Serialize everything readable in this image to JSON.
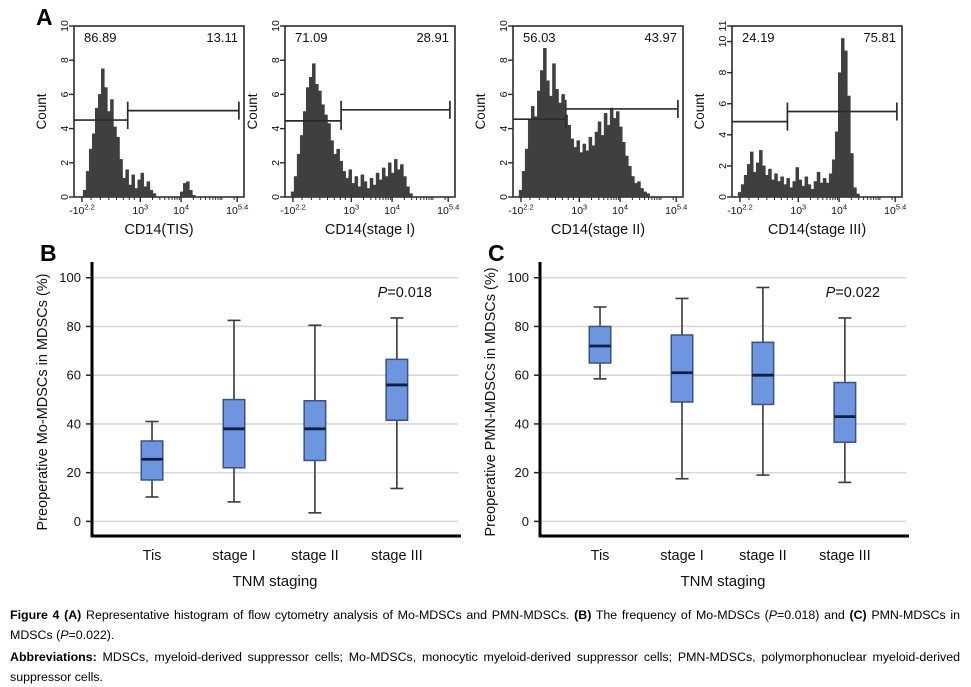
{
  "figure": {
    "panel_a_label": "A",
    "panel_b_label": "B",
    "panel_c_label": "C"
  },
  "colors": {
    "hist_fill": "#3f3f3f",
    "axis": "#2b2b2b",
    "box_fill": "#6e96e0",
    "box_border": "#3c5182",
    "median": "#131f3e",
    "whisker": "#3a3a3a",
    "grid": "#d8d8d8",
    "text": "#111111"
  },
  "hist_minor_ticks": [
    0.1,
    0.155,
    0.205,
    0.25,
    0.29,
    0.325,
    0.355,
    0.462,
    0.505,
    0.534,
    0.558,
    0.577,
    0.593,
    0.607,
    0.62,
    0.702,
    0.745,
    0.774,
    0.798,
    0.817,
    0.833,
    0.847,
    0.86,
    0.87,
    0.942
  ],
  "chart_data": [
    {
      "id": "hist-tis",
      "type": "histogram",
      "ylabel": "Count",
      "xlabel": "CD14(TIS)",
      "ylim": [
        0,
        10
      ],
      "yticks": [
        0,
        2,
        4,
        6,
        8,
        10
      ],
      "xticks": [
        {
          "base": "-10",
          "exp": "2.2",
          "pos": 0.047
        },
        {
          "base": "10",
          "exp": "3",
          "pos": 0.39
        },
        {
          "base": "10",
          "exp": "4",
          "pos": 0.63
        },
        {
          "base": "10",
          "exp": "5.4",
          "pos": 0.96
        }
      ],
      "gate": {
        "boundary": 0.316,
        "left_y": 4.5,
        "right_y": 5.05,
        "left_label": "86.89",
        "right_label": "13.11"
      },
      "counts": [
        0,
        0,
        0,
        0.4,
        1.5,
        2.8,
        3.7,
        5.2,
        6,
        7.5,
        6.4,
        5,
        5.7,
        4.1,
        3.5,
        2.2,
        1.1,
        1.6,
        0.7,
        1.3,
        0.5,
        1,
        1.4,
        0.6,
        0.9,
        0.4,
        0.2,
        0,
        0,
        0,
        0,
        0,
        0,
        0,
        0,
        0.3,
        0.8,
        0.9,
        0.4,
        0.1,
        0,
        0,
        0,
        0,
        0,
        0,
        0,
        0,
        0,
        0,
        0,
        0,
        0,
        0,
        0,
        0
      ]
    },
    {
      "id": "hist-stage1",
      "type": "histogram",
      "ylabel": "Count",
      "xlabel": "CD14(stage I)",
      "ylim": [
        0,
        10
      ],
      "yticks": [
        0,
        2,
        4,
        6,
        8,
        10
      ],
      "xticks": [
        {
          "base": "-10",
          "exp": "2.2",
          "pos": 0.047
        },
        {
          "base": "10",
          "exp": "3",
          "pos": 0.39
        },
        {
          "base": "10",
          "exp": "4",
          "pos": 0.63
        },
        {
          "base": "10",
          "exp": "5.4",
          "pos": 0.96
        }
      ],
      "gate": {
        "boundary": 0.33,
        "left_y": 4.45,
        "right_y": 5.1,
        "left_label": "71.09",
        "right_label": "28.91"
      },
      "counts": [
        0,
        0,
        0.3,
        1.2,
        2.5,
        3.6,
        5,
        6.4,
        7,
        7.8,
        6.6,
        6.2,
        5.4,
        4.8,
        4.3,
        3.3,
        2.5,
        2.8,
        2.1,
        1.5,
        1.1,
        1.6,
        0.8,
        1.2,
        0.6,
        1.3,
        0.9,
        0.5,
        1.1,
        0.7,
        1.4,
        1,
        1.7,
        1.2,
        2,
        1.4,
        2.2,
        1.6,
        1.9,
        1.2,
        0.6,
        0.2,
        0,
        0,
        0,
        0,
        0,
        0,
        0,
        0,
        0,
        0,
        0,
        0,
        0,
        0
      ]
    },
    {
      "id": "hist-stage2",
      "type": "histogram",
      "ylabel": "Count",
      "xlabel": "CD14(stage II)",
      "ylim": [
        0,
        10
      ],
      "yticks": [
        0,
        2,
        4,
        6,
        8,
        10
      ],
      "xticks": [
        {
          "base": "-10",
          "exp": "2.2",
          "pos": 0.047
        },
        {
          "base": "10",
          "exp": "3",
          "pos": 0.39
        },
        {
          "base": "10",
          "exp": "4",
          "pos": 0.63
        },
        {
          "base": "10",
          "exp": "5.4",
          "pos": 0.96
        }
      ],
      "gate": {
        "boundary": 0.31,
        "left_y": 4.55,
        "right_y": 5.15,
        "left_label": "56.03",
        "right_label": "43.97"
      },
      "counts": [
        0,
        0,
        0.4,
        1.5,
        2.8,
        4.5,
        5.3,
        4.7,
        6.2,
        7.4,
        8.7,
        6.8,
        5.9,
        7.8,
        6.3,
        5.5,
        6,
        4.8,
        4.2,
        3.4,
        2.9,
        3.3,
        2.6,
        3.1,
        2.7,
        3.5,
        3,
        3.8,
        4.4,
        3.6,
        4.9,
        4.2,
        5.2,
        4.6,
        5,
        4.1,
        3.2,
        2.4,
        1.8,
        1.2,
        0.8,
        0.9,
        0.5,
        0.3,
        0.2,
        0,
        0,
        0,
        0,
        0,
        0,
        0,
        0,
        0,
        0,
        0
      ]
    },
    {
      "id": "hist-stage3",
      "type": "histogram",
      "ylabel": "Count",
      "xlabel": "CD14(stage III)",
      "ylim": [
        0,
        11
      ],
      "yticks": [
        0,
        2,
        4,
        6,
        8,
        10,
        11
      ],
      "xticks": [
        {
          "base": "-10",
          "exp": "2.2",
          "pos": 0.047
        },
        {
          "base": "10",
          "exp": "3",
          "pos": 0.39
        },
        {
          "base": "10",
          "exp": "4",
          "pos": 0.63
        },
        {
          "base": "10",
          "exp": "5.4",
          "pos": 0.96
        }
      ],
      "gate": {
        "boundary": 0.326,
        "left_y": 4.85,
        "right_y": 5.5,
        "left_label": "24.19",
        "right_label": "75.81"
      },
      "counts": [
        0,
        0,
        0.3,
        0.8,
        1.4,
        2.1,
        2.9,
        1.6,
        2.2,
        3,
        2,
        1.4,
        1.8,
        1.1,
        1.5,
        1,
        1.3,
        0.8,
        1.2,
        0.6,
        1,
        1.9,
        1.1,
        0.7,
        1.3,
        0.8,
        0.5,
        1,
        1.6,
        0.9,
        1.2,
        0.9,
        1.5,
        2.4,
        4.2,
        8,
        10.2,
        9.4,
        6.5,
        2.8,
        0.6,
        0.2,
        0,
        0,
        0,
        0,
        0,
        0,
        0,
        0,
        0,
        0,
        0,
        0,
        0,
        0
      ]
    },
    {
      "id": "box-mo",
      "type": "boxplot",
      "ylabel": "Preoperative Mo-MDSCs in MDSCs (%)",
      "xlabel": "TNM staging",
      "ylim": [
        0,
        100
      ],
      "yticks": [
        0,
        20,
        40,
        60,
        80,
        100
      ],
      "categories": [
        "Tis",
        "stage I",
        "stage II",
        "stage III"
      ],
      "p_value": {
        "italic": "P",
        "text": "=0.018"
      },
      "series": [
        {
          "category": "Tis",
          "whisker_low": 10,
          "q1": 17,
          "median": 25.5,
          "q3": 33,
          "whisker_high": 41
        },
        {
          "category": "stage I",
          "whisker_low": 8,
          "q1": 22,
          "median": 38,
          "q3": 50,
          "whisker_high": 82.5
        },
        {
          "category": "stage II",
          "whisker_low": 3.5,
          "q1": 25,
          "median": 38,
          "q3": 49.5,
          "whisker_high": 80.5
        },
        {
          "category": "stage III",
          "whisker_low": 13.5,
          "q1": 41.5,
          "median": 56,
          "q3": 66.5,
          "whisker_high": 83.5
        }
      ]
    },
    {
      "id": "box-pmn",
      "type": "boxplot",
      "ylabel": "Preoperative PMN-MDSCs in MDSCs (%)",
      "xlabel": "TNM staging",
      "ylim": [
        0,
        100
      ],
      "yticks": [
        0,
        20,
        40,
        60,
        80,
        100
      ],
      "categories": [
        "Tis",
        "stage I",
        "stage II",
        "stage III"
      ],
      "p_value": {
        "italic": "P",
        "text": "=0.022"
      },
      "series": [
        {
          "category": "Tis",
          "whisker_low": 58.5,
          "q1": 65,
          "median": 72,
          "q3": 80,
          "whisker_high": 88
        },
        {
          "category": "stage I",
          "whisker_low": 17.5,
          "q1": 49,
          "median": 61,
          "q3": 76.5,
          "whisker_high": 91.5
        },
        {
          "category": "stage II",
          "whisker_low": 19,
          "q1": 48,
          "median": 60,
          "q3": 73.5,
          "whisker_high": 96
        },
        {
          "category": "stage III",
          "whisker_low": 16,
          "q1": 32.5,
          "median": 43,
          "q3": 57,
          "whisker_high": 83.5
        }
      ]
    }
  ],
  "caption": {
    "paragraphs": [
      {
        "segments": [
          {
            "text": "Figure 4 ",
            "bold": true
          },
          {
            "text": "(A)",
            "bold": true
          },
          {
            "text": " Representative histogram of flow cytometry analysis of Mo-MDSCs and PMN-MDSCs. "
          },
          {
            "text": "(B)",
            "bold": true
          },
          {
            "text": " The frequency of Mo-MDSCs ("
          },
          {
            "text": "P",
            "italic": true
          },
          {
            "text": "=0.018) and "
          },
          {
            "text": "(C)",
            "bold": true
          },
          {
            "text": " PMN-MDSCs in MDSCs ("
          },
          {
            "text": "P",
            "italic": true
          },
          {
            "text": "=0.022)."
          }
        ]
      },
      {
        "segments": [
          {
            "text": "Abbreviations: ",
            "bold": true
          },
          {
            "text": "MDSCs, myeloid-derived suppressor cells; Mo-MDSCs, monocytic myeloid-derived suppressor cells; PMN-MDSCs, polymorphonuclear myeloid-derived suppressor cells."
          }
        ]
      }
    ]
  }
}
